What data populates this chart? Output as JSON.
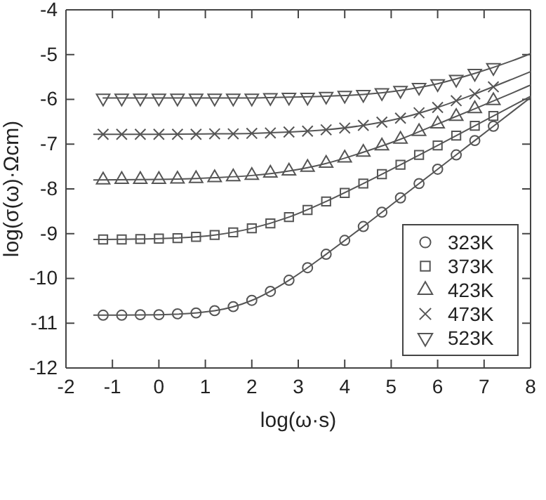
{
  "chart_data": {
    "type": "scatter",
    "xlabel": "log(ω·s)",
    "ylabel": "log(σ(ω)·Ωcm)",
    "xlim": [
      -2,
      8
    ],
    "ylim": [
      -12,
      -4
    ],
    "xticks": [
      -2,
      -1,
      0,
      1,
      2,
      3,
      4,
      5,
      6,
      7,
      8
    ],
    "yticks": [
      -12,
      -11,
      -10,
      -9,
      -8,
      -7,
      -6,
      -5,
      -4
    ],
    "grid": false,
    "legend": "bottom right",
    "x": [
      -1.2,
      -0.8,
      -0.4,
      0,
      0.4,
      0.8,
      1.2,
      1.6,
      2.0,
      2.4,
      2.8,
      3.2,
      3.6,
      4.0,
      4.4,
      4.8,
      5.2,
      5.6,
      6.0,
      6.4,
      6.8,
      7.2
    ],
    "series": [
      {
        "name": "323K",
        "marker": "circle",
        "color": "#555555",
        "values": [
          -10.82,
          -10.82,
          -10.81,
          -10.81,
          -10.79,
          -10.77,
          -10.72,
          -10.63,
          -10.49,
          -10.29,
          -10.04,
          -9.76,
          -9.46,
          -9.15,
          -8.84,
          -8.52,
          -8.2,
          -7.88,
          -7.56,
          -7.24,
          -6.92,
          -6.6
        ]
      },
      {
        "name": "373K",
        "marker": "square",
        "color": "#555555",
        "values": [
          -9.13,
          -9.13,
          -9.12,
          -9.11,
          -9.1,
          -9.07,
          -9.03,
          -8.97,
          -8.88,
          -8.77,
          -8.63,
          -8.47,
          -8.28,
          -8.09,
          -7.88,
          -7.67,
          -7.46,
          -7.24,
          -7.03,
          -6.81,
          -6.59,
          -6.37
        ]
      },
      {
        "name": "423K",
        "marker": "triangle",
        "color": "#555555",
        "values": [
          -7.8,
          -7.79,
          -7.79,
          -7.79,
          -7.78,
          -7.77,
          -7.75,
          -7.73,
          -7.7,
          -7.65,
          -7.6,
          -7.52,
          -7.43,
          -7.31,
          -7.18,
          -7.04,
          -6.89,
          -6.72,
          -6.55,
          -6.38,
          -6.21,
          -6.03
        ]
      },
      {
        "name": "473K",
        "marker": "cross",
        "color": "#555555",
        "values": [
          -6.78,
          -6.78,
          -6.78,
          -6.78,
          -6.78,
          -6.78,
          -6.77,
          -6.77,
          -6.76,
          -6.75,
          -6.73,
          -6.71,
          -6.68,
          -6.64,
          -6.58,
          -6.51,
          -6.42,
          -6.3,
          -6.18,
          -6.03,
          -5.88,
          -5.72
        ]
      },
      {
        "name": "523K",
        "marker": "triangle-down",
        "color": "#555555",
        "values": [
          -5.97,
          -5.97,
          -5.97,
          -5.97,
          -5.97,
          -5.97,
          -5.97,
          -5.97,
          -5.97,
          -5.96,
          -5.95,
          -5.95,
          -5.93,
          -5.91,
          -5.89,
          -5.85,
          -5.8,
          -5.73,
          -5.65,
          -5.55,
          -5.42,
          -5.29
        ]
      },
      {
        "type": "line",
        "marker": "none",
        "color": "#555555",
        "x": [
          -1.4,
          0,
          1.2,
          2.0,
          2.8,
          3.6,
          4.4,
          5.2,
          6.0,
          6.8,
          7.6,
          8.0
        ],
        "values": [
          -10.82,
          -10.81,
          -10.72,
          -10.49,
          -10.04,
          -9.46,
          -8.84,
          -8.2,
          -7.56,
          -6.92,
          -6.28,
          -5.96
        ]
      },
      {
        "type": "line",
        "marker": "none",
        "color": "#555555",
        "x": [
          -1.4,
          0,
          1.2,
          2.0,
          2.8,
          3.6,
          4.4,
          5.2,
          6.0,
          6.8,
          7.6,
          8.0
        ],
        "values": [
          -9.13,
          -9.11,
          -9.03,
          -8.88,
          -8.63,
          -8.28,
          -7.88,
          -7.46,
          -7.03,
          -6.59,
          -6.15,
          -5.93
        ]
      },
      {
        "type": "line",
        "marker": "none",
        "color": "#555555",
        "x": [
          -1.4,
          0,
          1.2,
          2.0,
          2.8,
          3.6,
          4.4,
          5.2,
          6.0,
          6.8,
          7.6,
          8.0
        ],
        "values": [
          -7.8,
          -7.79,
          -7.75,
          -7.7,
          -7.6,
          -7.43,
          -7.18,
          -6.89,
          -6.55,
          -6.21,
          -5.86,
          -5.68
        ]
      },
      {
        "type": "line",
        "marker": "none",
        "color": "#555555",
        "x": [
          -1.4,
          0,
          1.2,
          2.0,
          2.8,
          3.6,
          4.4,
          5.2,
          6.0,
          6.8,
          7.6,
          8.0
        ],
        "values": [
          -6.78,
          -6.78,
          -6.77,
          -6.76,
          -6.73,
          -6.68,
          -6.58,
          -6.42,
          -6.18,
          -5.88,
          -5.55,
          -5.38
        ]
      },
      {
        "type": "line",
        "marker": "none",
        "color": "#555555",
        "x": [
          -1.2,
          0,
          1.2,
          2.0,
          2.8,
          3.6,
          4.4,
          5.2,
          6.0,
          6.8,
          7.6,
          8.0
        ],
        "values": [
          -5.97,
          -5.97,
          -5.97,
          -5.97,
          -5.95,
          -5.93,
          -5.89,
          -5.8,
          -5.65,
          -5.42,
          -5.14,
          -4.98
        ]
      }
    ]
  }
}
